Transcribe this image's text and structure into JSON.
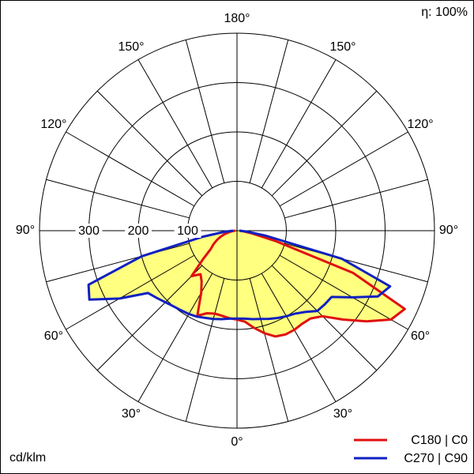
{
  "chart_data": {
    "type": "polar",
    "efficiency_label": "η: 100%",
    "unit_label": "cd/klm",
    "x": [
      -90,
      -85,
      -80,
      -75,
      -70,
      -65,
      -60,
      -55,
      -50,
      -45,
      -40,
      -35,
      -30,
      -25,
      -20,
      -15,
      -10,
      -5,
      0,
      5,
      10,
      15,
      20,
      25,
      30,
      35,
      40,
      45,
      50,
      55,
      60,
      65,
      70,
      75,
      80,
      85,
      90
    ],
    "series": [
      {
        "name": "C180 | C0",
        "color": "#e01010",
        "values": [
          3,
          8,
          15,
          25,
          35,
          45,
          55,
          65,
          90,
          130,
          115,
          125,
          145,
          190,
          178,
          174,
          175,
          178,
          180,
          185,
          200,
          215,
          228,
          232,
          232,
          230,
          232,
          245,
          280,
          320,
          360,
          375,
          250,
          80,
          30,
          12,
          5
        ]
      },
      {
        "name": "C270 | C90",
        "color": "#1020c0",
        "values": [
          8,
          25,
          70,
          200,
          320,
          330,
          275,
          220,
          212,
          205,
          200,
          197,
          195,
          192,
          188,
          185,
          182,
          179,
          178,
          179,
          182,
          185,
          190,
          195,
          200,
          205,
          215,
          230,
          232,
          234,
          270,
          315,
          330,
          220,
          60,
          20,
          5
        ]
      }
    ],
    "fill_color": "#ffff80",
    "xlim": [
      -180,
      180
    ],
    "xticks": [
      {
        "value": -150,
        "label": "150°"
      },
      {
        "value": -120,
        "label": "120°"
      },
      {
        "value": -90,
        "label": "90°"
      },
      {
        "value": -60,
        "label": "60°"
      },
      {
        "value": -30,
        "label": "30°"
      },
      {
        "value": 0,
        "label": "0°"
      },
      {
        "value": 30,
        "label": "30°"
      },
      {
        "value": 60,
        "label": "60°"
      },
      {
        "value": 90,
        "label": "90°"
      },
      {
        "value": 120,
        "label": "120°"
      },
      {
        "value": 150,
        "label": "150°"
      },
      {
        "value": 180,
        "label": "180°"
      }
    ],
    "angle_grid_step": 15,
    "ylim": [
      0,
      400
    ],
    "yticks": [
      100,
      200,
      300
    ]
  }
}
